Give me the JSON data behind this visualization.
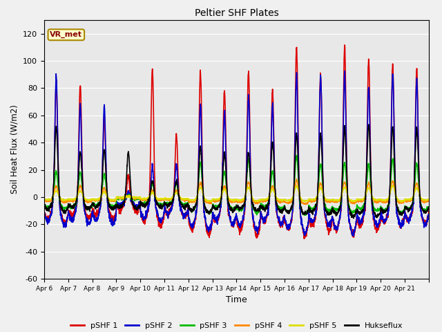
{
  "title": "Peltier SHF Plates",
  "xlabel": "Time",
  "ylabel": "Soil Heat Flux (W/m2)",
  "ylim": [
    -60,
    130
  ],
  "yticks": [
    -60,
    -40,
    -20,
    0,
    20,
    40,
    60,
    80,
    100,
    120
  ],
  "plot_bg_color": "#e8e8e8",
  "fig_bg_color": "#f0f0f0",
  "series": [
    {
      "label": "pSHF 1",
      "color": "#dd0000",
      "lw": 1.2
    },
    {
      "label": "pSHF 2",
      "color": "#0000cc",
      "lw": 1.2
    },
    {
      "label": "pSHF 3",
      "color": "#00bb00",
      "lw": 1.2
    },
    {
      "label": "pSHF 4",
      "color": "#ff8800",
      "lw": 1.2
    },
    {
      "label": "pSHF 5",
      "color": "#dddd00",
      "lw": 1.2
    },
    {
      "label": "Hukseflux",
      "color": "#000000",
      "lw": 1.2
    }
  ],
  "xtick_labels": [
    "Apr 6",
    "Apr 7",
    "Apr 8",
    "Apr 9",
    "Apr 10",
    "Apr 11",
    "Apr 12",
    "Apr 13",
    "Apr 14",
    "Apr 15",
    "Apr 16",
    "Apr 17",
    "Apr 18",
    "Apr 19",
    "Apr 20",
    "Apr 21"
  ],
  "vr_met_label": "VR_met",
  "legend_ncol": 6,
  "n_days": 16,
  "pts_per_day": 144,
  "day_amps_shf1": [
    88,
    85,
    62,
    18,
    97,
    48,
    97,
    83,
    97,
    82,
    115,
    95,
    116,
    105,
    101,
    97
  ],
  "day_amps_shf2": [
    92,
    70,
    70,
    5,
    26,
    26,
    72,
    65,
    78,
    70,
    95,
    92,
    95,
    85,
    95,
    90
  ],
  "day_amps_shf3": [
    22,
    22,
    20,
    2,
    12,
    12,
    30,
    22,
    32,
    22,
    35,
    28,
    30,
    28,
    32,
    28
  ],
  "day_amps_shf4": [
    10,
    10,
    8,
    1,
    6,
    6,
    13,
    10,
    13,
    10,
    15,
    12,
    13,
    12,
    14,
    12
  ],
  "day_amps_shf5": [
    6,
    6,
    5,
    0.5,
    4,
    4,
    9,
    7,
    9,
    7,
    10,
    8,
    9,
    8,
    10,
    8
  ],
  "day_amps_huk": [
    55,
    35,
    37,
    35,
    14,
    14,
    40,
    35,
    35,
    43,
    50,
    50,
    55,
    57,
    55,
    53
  ],
  "neg_depths_shf1": [
    27,
    22,
    22,
    15,
    30,
    20,
    40,
    30,
    40,
    30,
    40,
    35,
    40,
    35,
    30,
    28
  ],
  "neg_depths_shf2": [
    30,
    28,
    28,
    10,
    25,
    20,
    35,
    28,
    35,
    28,
    38,
    30,
    38,
    30,
    30,
    28
  ],
  "neg_depths_shf3": [
    12,
    12,
    10,
    2,
    8,
    8,
    16,
    12,
    16,
    12,
    18,
    14,
    16,
    14,
    16,
    14
  ],
  "neg_depths_shf4": [
    5,
    5,
    4,
    1,
    3,
    3,
    6,
    5,
    6,
    5,
    7,
    5,
    6,
    5,
    6,
    5
  ],
  "neg_depths_shf5": [
    3,
    3,
    3,
    0.5,
    2,
    2,
    4,
    3,
    4,
    3,
    4,
    3,
    4,
    3,
    4,
    3
  ],
  "neg_depths_huk": [
    15,
    12,
    12,
    12,
    10,
    10,
    16,
    14,
    14,
    15,
    18,
    18,
    20,
    20,
    18,
    16
  ]
}
